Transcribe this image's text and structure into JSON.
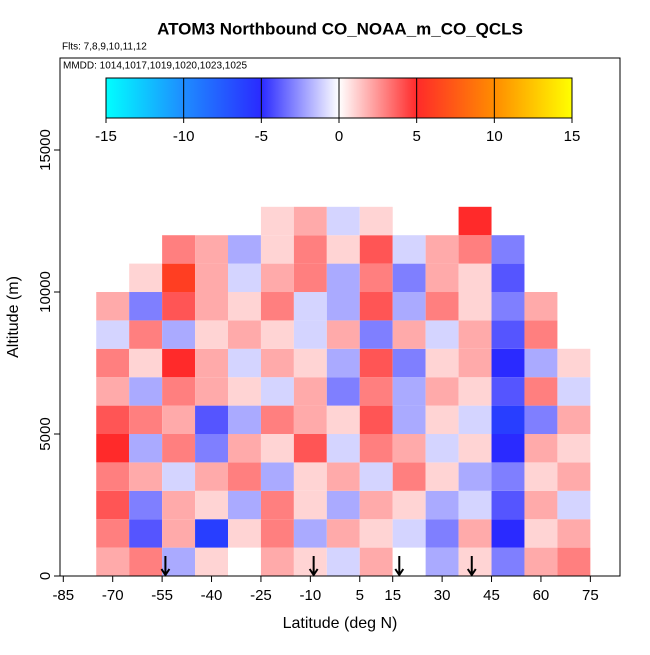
{
  "chart_data": {
    "type": "heatmap",
    "title": "ATOM3 Northbound CO_NOAA_m_CO_QCLS",
    "subtitle": "Flts: 7,8,9,10,11,12",
    "annotation": "MMDD: 1014,1017,1019,1020,1023,1025",
    "xlabel": "Latitude (deg N)",
    "ylabel": "Altitude (m)",
    "xlim": [
      -86,
      84
    ],
    "ylim": [
      0,
      18240
    ],
    "xticks": [
      -85,
      -70,
      -55,
      -40,
      -25,
      -10,
      5,
      15,
      30,
      45,
      60,
      75
    ],
    "yticks": [
      0,
      5000,
      10000,
      15000
    ],
    "colorbar_ticks": [
      -15,
      -10,
      -5,
      0,
      5,
      10,
      15
    ],
    "colors": [
      "#00ffff",
      "#1e8cff",
      "#2a2aff",
      "#ffffff",
      "#ff2a2a",
      "#ff8c00",
      "#ffff00"
    ],
    "arrows": [
      -54,
      -9,
      17,
      39
    ],
    "x": [
      -80,
      -70,
      -60,
      -50,
      -40,
      -30,
      -20,
      -10,
      0,
      10,
      20,
      30,
      40,
      50,
      60,
      70,
      80
    ],
    "y": [
      500,
      1500,
      2500,
      3500,
      4500,
      5500,
      6500,
      7500,
      8500,
      9500,
      10500,
      11500,
      12500
    ],
    "values": [
      [
        null,
        2,
        3,
        -2,
        1,
        0,
        2,
        1,
        -1,
        2,
        0,
        -2,
        1,
        -3,
        2,
        3,
        null
      ],
      [
        null,
        3,
        -4,
        2,
        -6,
        1,
        3,
        -2,
        2,
        1,
        -1,
        -3,
        2,
        -5,
        1,
        2,
        null
      ],
      [
        null,
        4,
        -3,
        2,
        1,
        -2,
        3,
        1,
        -2,
        2,
        1,
        -2,
        -1,
        -4,
        2,
        -1,
        null
      ],
      [
        null,
        3,
        2,
        -1,
        2,
        3,
        -2,
        1,
        2,
        -1,
        3,
        1,
        -2,
        -3,
        1,
        2,
        null
      ],
      [
        null,
        5,
        -2,
        3,
        -3,
        2,
        1,
        4,
        -1,
        3,
        2,
        -1,
        1,
        -5,
        2,
        1,
        null
      ],
      [
        null,
        4,
        3,
        2,
        -4,
        -2,
        3,
        2,
        1,
        4,
        -2,
        1,
        -1,
        -6,
        -3,
        2,
        null
      ],
      [
        null,
        2,
        -2,
        3,
        2,
        1,
        -1,
        2,
        -3,
        3,
        -2,
        2,
        1,
        -4,
        3,
        -1,
        null
      ],
      [
        null,
        3,
        1,
        5,
        2,
        -1,
        2,
        1,
        -2,
        4,
        -3,
        1,
        2,
        -5,
        -2,
        1,
        null
      ],
      [
        null,
        -1,
        3,
        -2,
        1,
        2,
        1,
        -1,
        2,
        -3,
        2,
        -1,
        2,
        -4,
        3,
        null,
        null
      ],
      [
        null,
        2,
        -3,
        4,
        2,
        1,
        3,
        -1,
        -2,
        4,
        -2,
        3,
        1,
        -3,
        2,
        null,
        null
      ],
      [
        null,
        null,
        1,
        6,
        2,
        -1,
        2,
        3,
        -2,
        3,
        -3,
        2,
        1,
        -4,
        null,
        null,
        null
      ],
      [
        null,
        null,
        null,
        3,
        2,
        -2,
        1,
        3,
        1,
        4,
        -1,
        2,
        3,
        -3,
        null,
        null,
        null
      ],
      [
        null,
        null,
        null,
        null,
        null,
        null,
        1,
        2,
        -1,
        1,
        null,
        null,
        5,
        null,
        null,
        null,
        null
      ]
    ]
  }
}
